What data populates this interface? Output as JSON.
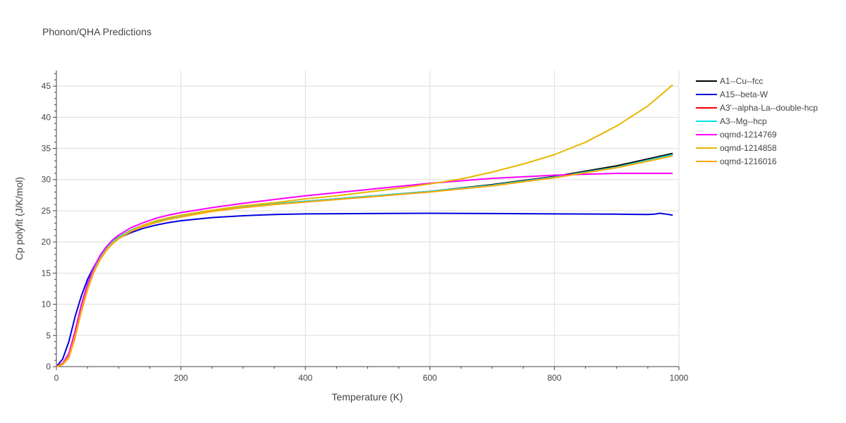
{
  "chart_data": {
    "type": "line",
    "title": "Phonon/QHA Predictions",
    "xlabel": "Temperature (K)",
    "ylabel": "Cp polyfit (J/K/mol)",
    "xlim": [
      0,
      1000
    ],
    "ylim": [
      0,
      47.5
    ],
    "xticks": [
      0,
      200,
      400,
      600,
      800,
      1000
    ],
    "yticks": [
      0,
      5,
      10,
      15,
      20,
      25,
      30,
      35,
      40,
      45
    ],
    "grid": true,
    "legend_position": "right",
    "series": [
      {
        "name": "A1--Cu--fcc",
        "color": "#000000",
        "x": [
          0,
          10,
          20,
          30,
          40,
          50,
          60,
          70,
          80,
          90,
          100,
          120,
          140,
          160,
          180,
          200,
          250,
          300,
          350,
          400,
          500,
          600,
          700,
          800,
          900,
          990
        ],
        "y": [
          0,
          0.5,
          2.0,
          5.5,
          9.6,
          13.0,
          15.6,
          17.5,
          18.9,
          20.0,
          20.8,
          21.9,
          22.7,
          23.3,
          23.8,
          24.2,
          25.0,
          25.6,
          26.1,
          26.5,
          27.3,
          28.1,
          29.2,
          30.5,
          32.2,
          34.2
        ]
      },
      {
        "name": "A15--beta-W",
        "color": "#0000dd",
        "x": [
          0,
          10,
          20,
          30,
          40,
          50,
          60,
          70,
          80,
          90,
          100,
          120,
          140,
          160,
          180,
          200,
          250,
          300,
          350,
          400,
          500,
          600,
          700,
          800,
          900,
          950,
          960,
          970,
          980,
          990
        ],
        "y": [
          0,
          1.2,
          4.0,
          8.0,
          11.3,
          14.0,
          16.0,
          17.6,
          18.9,
          19.9,
          20.6,
          21.5,
          22.2,
          22.7,
          23.1,
          23.4,
          23.9,
          24.2,
          24.4,
          24.5,
          24.55,
          24.6,
          24.55,
          24.5,
          24.45,
          24.4,
          24.45,
          24.6,
          24.45,
          24.3
        ]
      },
      {
        "name": "A3'--alpha-La--double-hcp",
        "color": "#ff0000",
        "x": [
          0,
          10,
          20,
          30,
          40,
          50,
          60,
          70,
          80,
          90,
          100,
          120,
          140,
          160,
          180,
          200,
          250,
          300,
          350,
          400,
          500,
          600,
          700,
          800,
          900,
          990
        ],
        "y": [
          0,
          0.5,
          2.0,
          5.5,
          9.6,
          13.0,
          15.6,
          17.5,
          18.9,
          20.0,
          20.8,
          21.9,
          22.7,
          23.3,
          23.8,
          24.2,
          25.0,
          25.6,
          26.1,
          26.5,
          27.3,
          28.1,
          29.1,
          30.4,
          32.0,
          34.0
        ]
      },
      {
        "name": "A3--Mg--hcp",
        "color": "#00e5ee",
        "x": [
          0,
          10,
          20,
          30,
          40,
          50,
          60,
          70,
          80,
          90,
          100,
          120,
          140,
          160,
          180,
          200,
          250,
          300,
          350,
          400,
          500,
          600,
          700,
          800,
          900,
          990
        ],
        "y": [
          0,
          0.5,
          2.0,
          5.5,
          9.6,
          13.0,
          15.6,
          17.5,
          18.9,
          20.0,
          20.8,
          21.9,
          22.7,
          23.3,
          23.8,
          24.2,
          25.0,
          25.6,
          26.1,
          26.5,
          27.3,
          28.1,
          29.1,
          30.4,
          32.0,
          34.0
        ]
      },
      {
        "name": "oqmd-1214769",
        "color": "#ff00ff",
        "x": [
          0,
          10,
          20,
          30,
          40,
          50,
          60,
          70,
          80,
          90,
          100,
          120,
          140,
          160,
          180,
          200,
          250,
          300,
          350,
          400,
          500,
          600,
          700,
          800,
          900,
          950,
          990
        ],
        "y": [
          0,
          0.5,
          2.1,
          5.7,
          9.9,
          13.3,
          15.9,
          17.8,
          19.2,
          20.3,
          21.1,
          22.3,
          23.1,
          23.8,
          24.3,
          24.7,
          25.5,
          26.2,
          26.8,
          27.4,
          28.4,
          29.4,
          30.2,
          30.7,
          31.0,
          31.0,
          31.0
        ]
      },
      {
        "name": "oqmd-1214858",
        "color": "#e8b800",
        "x": [
          0,
          10,
          20,
          30,
          40,
          50,
          60,
          70,
          80,
          90,
          100,
          120,
          140,
          160,
          180,
          200,
          250,
          300,
          350,
          400,
          450,
          500,
          550,
          600,
          650,
          700,
          750,
          800,
          850,
          900,
          950,
          990
        ],
        "y": [
          0,
          0.4,
          1.6,
          4.9,
          9.0,
          12.5,
          15.2,
          17.2,
          18.7,
          19.8,
          20.6,
          21.8,
          22.7,
          23.4,
          23.9,
          24.3,
          25.1,
          25.8,
          26.3,
          26.9,
          27.4,
          28.0,
          28.6,
          29.3,
          30.1,
          31.2,
          32.5,
          34.0,
          36.0,
          38.6,
          41.8,
          45.2
        ]
      },
      {
        "name": "oqmd-1216016",
        "color": "#ffa500",
        "x": [
          0,
          10,
          20,
          30,
          40,
          50,
          60,
          70,
          80,
          90,
          100,
          120,
          140,
          160,
          180,
          200,
          250,
          300,
          350,
          400,
          500,
          600,
          700,
          800,
          900,
          990
        ],
        "y": [
          0,
          0.3,
          1.4,
          4.6,
          8.8,
          12.3,
          15.1,
          17.1,
          18.6,
          19.7,
          20.5,
          21.7,
          22.5,
          23.1,
          23.6,
          24.0,
          24.9,
          25.5,
          26.0,
          26.4,
          27.2,
          28.0,
          29.0,
          30.3,
          31.9,
          33.8
        ]
      }
    ]
  }
}
